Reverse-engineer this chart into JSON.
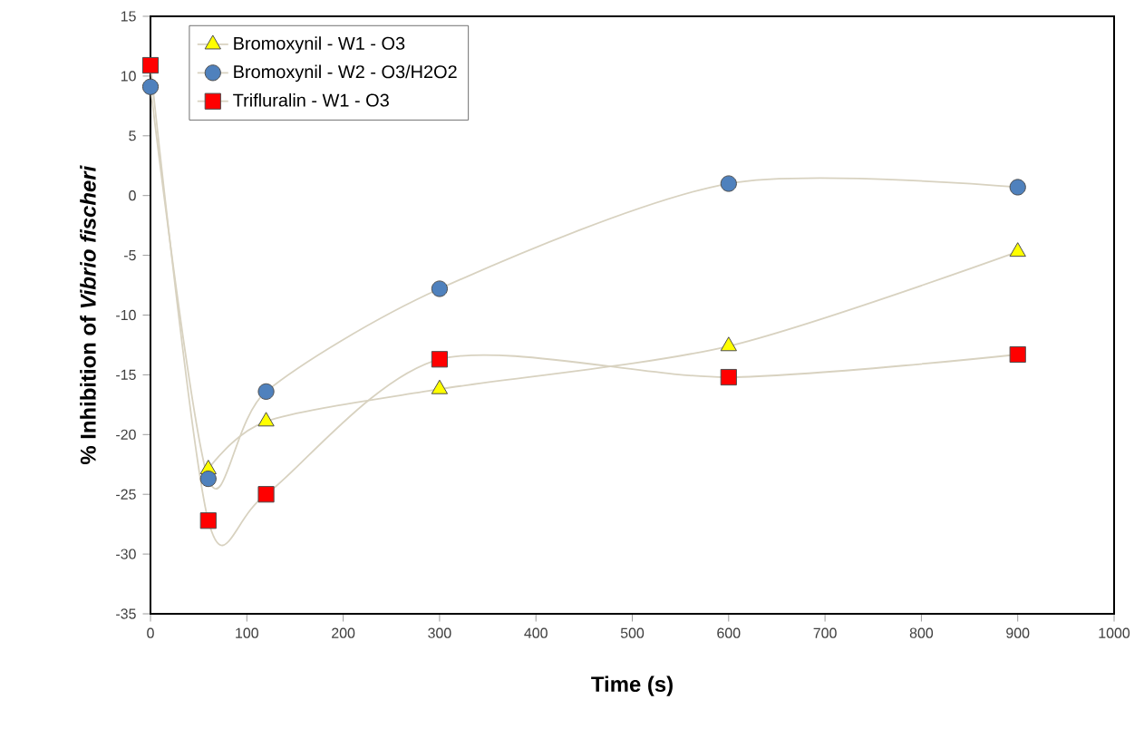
{
  "chart_data": {
    "type": "line",
    "xlabel": "Time (s)",
    "ylabel": "% Inhibition of *Vibrio fischeri*",
    "x": [
      0,
      60,
      120,
      300,
      600,
      900
    ],
    "series": [
      {
        "name": "Bromoxynil - W1  - O3",
        "color": "#ffff00",
        "marker": "triangle",
        "values": [
          null,
          -22.9,
          -18.9,
          -16.2,
          -12.6,
          -4.7
        ]
      },
      {
        "name": "Bromoxynil - W2 - O3/H2O2",
        "color": "#4f81bd",
        "marker": "circle",
        "values": [
          9.1,
          -23.7,
          -16.4,
          -7.8,
          1.0,
          0.7
        ]
      },
      {
        "name": "Trifluralin - W1 - O3",
        "color": "#ff0000",
        "marker": "square",
        "values": [
          10.9,
          -27.2,
          -25.0,
          -13.7,
          -15.2,
          -13.3
        ]
      }
    ],
    "xlim": [
      0,
      1000
    ],
    "xticks": [
      0,
      100,
      200,
      300,
      400,
      500,
      600,
      700,
      800,
      900,
      1000
    ],
    "ylim": [
      -35,
      15
    ],
    "yticks": [
      -35,
      -30,
      -25,
      -20,
      -15,
      -10,
      -5,
      0,
      5,
      10,
      15
    ],
    "grid": false,
    "legend": "top left",
    "line_style": "solid"
  }
}
